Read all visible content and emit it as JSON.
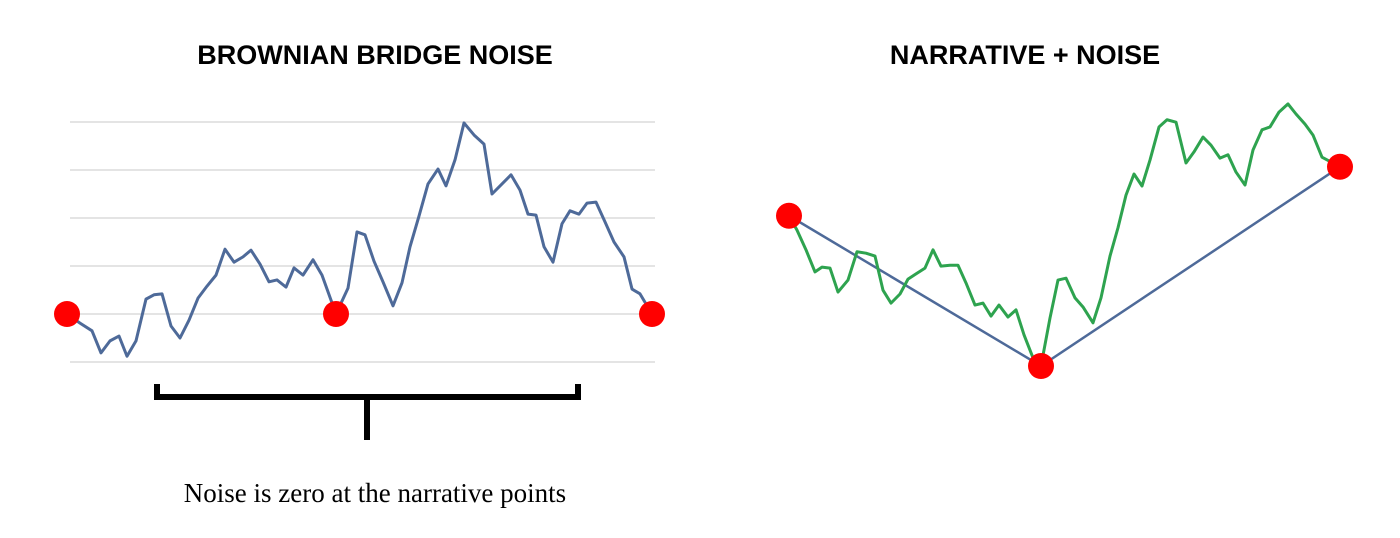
{
  "chart_data": [
    {
      "type": "line",
      "title": "BROWNIAN BRIDGE NOISE",
      "annotation": "Noise is zero at the narrative points",
      "color": "#4e6a99",
      "grid": true,
      "xlim": [
        0,
        585
      ],
      "ylim": [
        -1,
        4
      ],
      "yticks": [
        -1,
        0,
        1,
        2,
        3,
        4
      ],
      "x": [
        0,
        13,
        25,
        34,
        43,
        52,
        60,
        69,
        79,
        87,
        95,
        104,
        113,
        122,
        131,
        140,
        149,
        158,
        167,
        176,
        184,
        193,
        202,
        210,
        219,
        227,
        236,
        246,
        255,
        269,
        281,
        290,
        298,
        307,
        316,
        326,
        335,
        343,
        352,
        361,
        371,
        379,
        388,
        397,
        407,
        417,
        425,
        435,
        444,
        453,
        461,
        469,
        477,
        486,
        495,
        503,
        512,
        520,
        529,
        538,
        547,
        557,
        565,
        573,
        585
      ],
      "values": [
        0,
        -0.19,
        -0.35,
        -0.81,
        -0.56,
        -0.46,
        -0.88,
        -0.56,
        0.31,
        0.4,
        0.42,
        -0.25,
        -0.5,
        -0.13,
        0.33,
        0.58,
        0.81,
        1.35,
        1.08,
        1.19,
        1.33,
        1.04,
        0.67,
        0.71,
        0.56,
        0.96,
        0.81,
        1.13,
        0.81,
        0,
        0.54,
        1.71,
        1.65,
        1.1,
        0.67,
        0.17,
        0.65,
        1.4,
        2.04,
        2.71,
        3.02,
        2.67,
        3.21,
        3.98,
        3.73,
        3.54,
        2.5,
        2.71,
        2.9,
        2.58,
        2.08,
        2.06,
        1.4,
        1.08,
        1.88,
        2.15,
        2.08,
        2.31,
        2.33,
        1.92,
        1.5,
        1.19,
        0.52,
        0.42,
        0
      ],
      "points": {
        "color": "#ff0000",
        "x": [
          0,
          269,
          585
        ],
        "values": [
          0,
          0,
          0
        ]
      }
    },
    {
      "type": "line",
      "title": "NARRATIVE + NOISE",
      "color": "#2ea34f",
      "grid": false,
      "xlim": [
        0,
        551
      ],
      "ylim": [
        0,
        6
      ],
      "x": [
        0,
        8,
        17,
        26,
        33,
        41,
        49,
        59,
        68,
        77,
        86,
        94,
        102,
        111,
        119,
        127,
        136,
        144,
        152,
        161,
        169,
        177,
        186,
        194,
        202,
        210,
        219,
        227,
        235,
        244,
        252,
        261,
        269,
        277,
        286,
        294,
        304,
        312,
        321,
        329,
        337,
        345,
        353,
        361,
        370,
        378,
        387,
        397,
        405,
        414,
        422,
        431,
        439,
        447,
        456,
        464,
        473,
        481,
        490,
        499,
        507,
        516,
        524,
        533,
        551
      ],
      "values": [
        3.13,
        2.83,
        2.42,
        1.96,
        2.06,
        2.04,
        1.54,
        1.79,
        2.38,
        2.35,
        2.29,
        1.58,
        1.31,
        1.5,
        1.81,
        1.92,
        2.04,
        2.42,
        2.08,
        2.1,
        2.1,
        1.73,
        1.27,
        1.31,
        1.04,
        1.27,
        1.02,
        1.17,
        0.65,
        0.17,
        0,
        1,
        1.79,
        1.83,
        1.42,
        1.23,
        0.9,
        1.42,
        2.29,
        2.88,
        3.56,
        4,
        3.75,
        4.29,
        4.98,
        5.13,
        5.08,
        4.23,
        4.46,
        4.77,
        4.6,
        4.33,
        4.4,
        4.04,
        3.77,
        4.5,
        4.92,
        4.98,
        5.29,
        5.46,
        5.25,
        5.04,
        4.81,
        4.35,
        4.15
      ],
      "points": {
        "color": "#ff0000",
        "line_color": "#4e6a99",
        "x": [
          0,
          252,
          551
        ],
        "values": [
          3.13,
          0,
          4.15
        ]
      }
    }
  ]
}
